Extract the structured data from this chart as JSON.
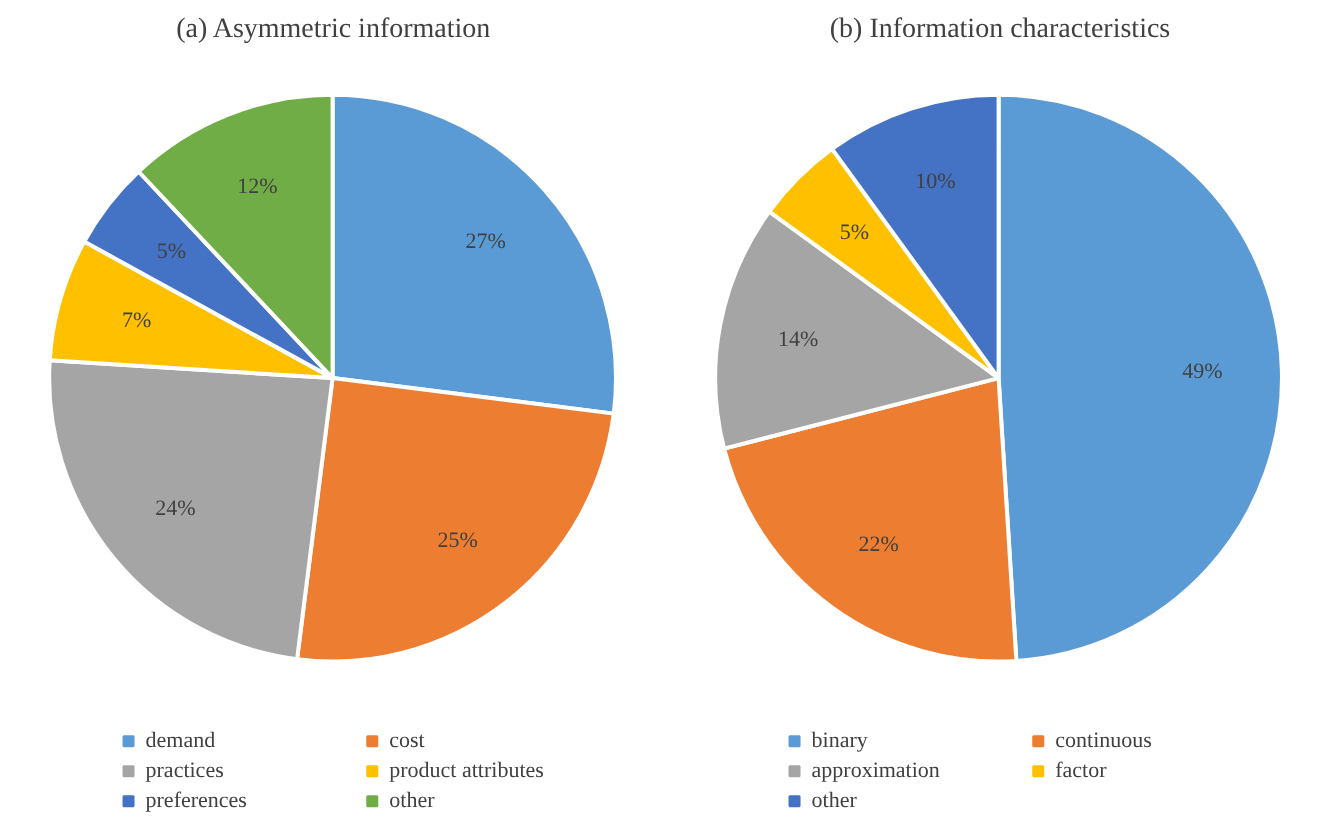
{
  "chart_data": [
    {
      "type": "pie",
      "title": "(a) Asymmetric information",
      "categories": [
        "demand",
        "cost",
        "practices",
        "product attributes",
        "preferences",
        "other"
      ],
      "values": [
        27,
        25,
        24,
        7,
        5,
        12
      ],
      "colors": [
        "#5b9bd5",
        "#ed7d31",
        "#a5a5a5",
        "#ffc000",
        "#4472c4",
        "#70ad47"
      ],
      "value_labels": [
        "27%",
        "25%",
        "24%",
        "7%",
        "5%",
        "12%"
      ],
      "legend": "bottom"
    },
    {
      "type": "pie",
      "title": "(b) Information characteristics",
      "categories": [
        "binary",
        "continuous",
        "approximation",
        "factor",
        "other"
      ],
      "values": [
        49,
        22,
        14,
        5,
        10
      ],
      "colors": [
        "#5b9bd5",
        "#ed7d31",
        "#a5a5a5",
        "#ffc000",
        "#4472c4"
      ],
      "value_labels": [
        "49%",
        "22%",
        "14%",
        "5%",
        "10%"
      ],
      "legend": "bottom"
    }
  ]
}
